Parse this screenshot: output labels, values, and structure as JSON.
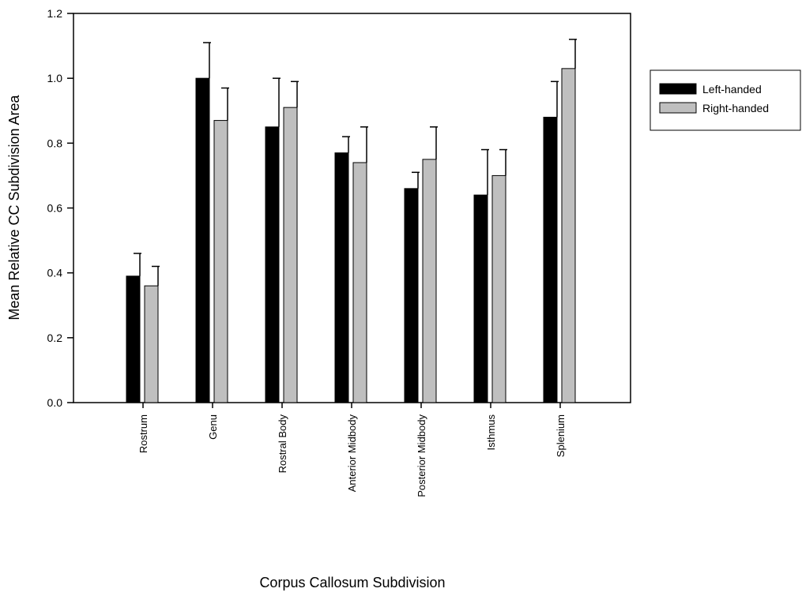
{
  "chart_data": {
    "type": "bar",
    "xlabel": "Corpus Callosum Subdivision",
    "ylabel": "Mean Relative CC Subdivision Area",
    "ylim": [
      0,
      1.2
    ],
    "yticks": [
      "0.0",
      "0.2",
      "0.4",
      "0.6",
      "0.8",
      "1.0",
      "1.2"
    ],
    "categories": [
      "Rostrum",
      "Genu",
      "Rostral Body",
      "Anterior Midbody",
      "Posterior Midbody",
      "Isthmus",
      "Splenium"
    ],
    "series": [
      {
        "name": "Left-handed",
        "color": "#000000",
        "values": [
          0.39,
          1.0,
          0.85,
          0.77,
          0.66,
          0.64,
          0.88
        ],
        "error": [
          0.07,
          0.11,
          0.15,
          0.05,
          0.05,
          0.14,
          0.11
        ]
      },
      {
        "name": "Right-handed",
        "color": "#bfbfbf",
        "values": [
          0.36,
          0.87,
          0.91,
          0.74,
          0.75,
          0.7,
          1.03
        ],
        "error": [
          0.06,
          0.1,
          0.08,
          0.11,
          0.1,
          0.08,
          0.09
        ]
      }
    ],
    "legend": "right",
    "grid": false
  }
}
